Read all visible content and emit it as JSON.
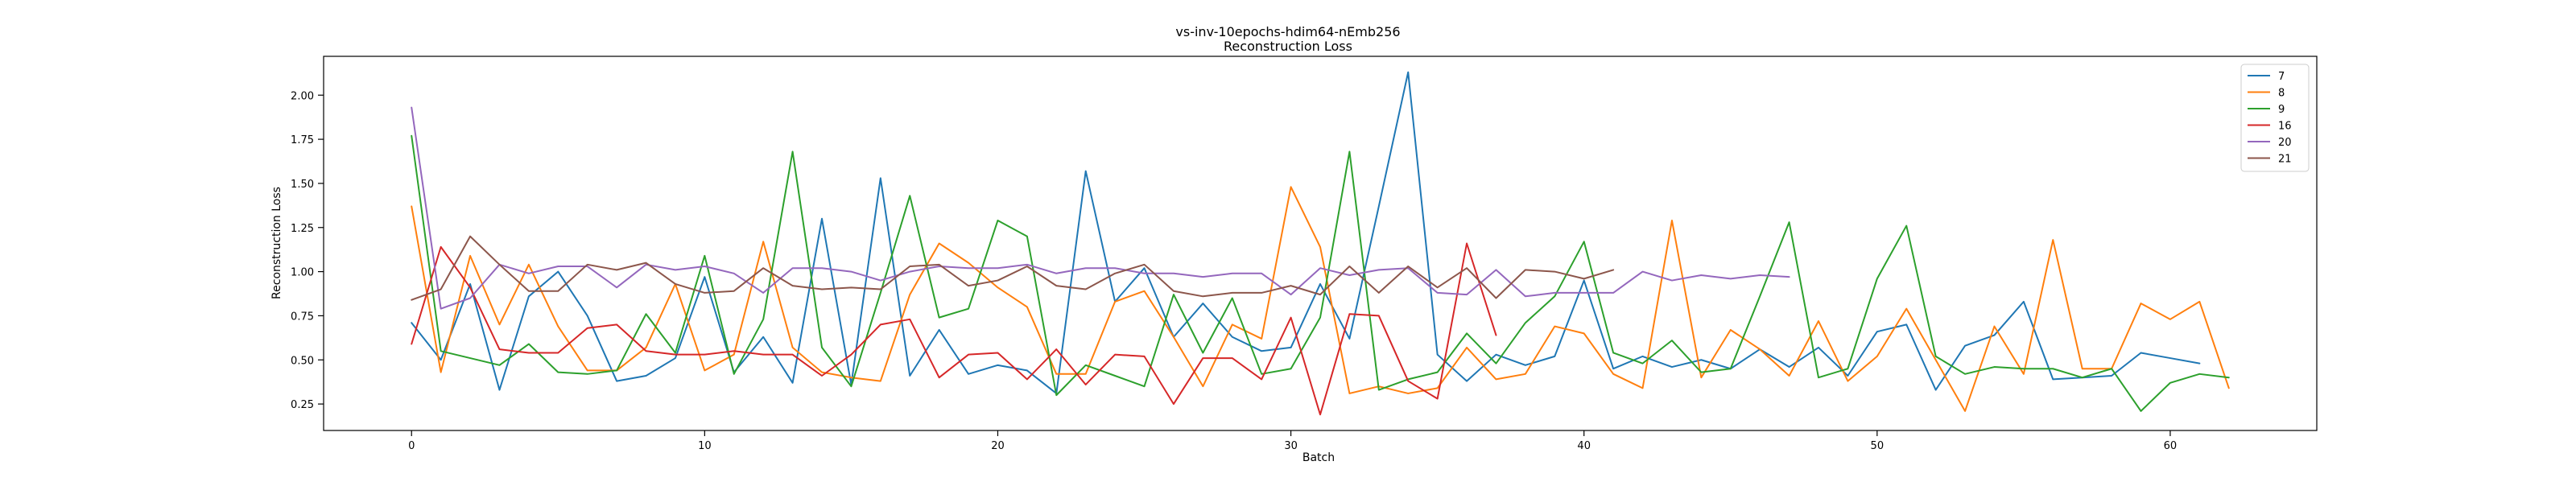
{
  "chart_data": {
    "type": "line",
    "title": "vs-inv-10epochs-hdim64-nEmb256",
    "subtitle": "Reconstruction Loss",
    "xlabel": "Batch",
    "ylabel": "Reconstruction Loss",
    "xlim": [
      -3,
      65
    ],
    "ylim": [
      0.1,
      2.22
    ],
    "xticks": [
      0,
      10,
      20,
      30,
      40,
      50,
      60
    ],
    "yticks": [
      "0.25",
      "0.50",
      "0.75",
      "1.00",
      "1.25",
      "1.50",
      "1.75",
      "2.00"
    ],
    "grid": false,
    "legend_position": "top-right",
    "series": [
      {
        "name": "7",
        "color": "#1f77b4",
        "values": [
          0.71,
          0.5,
          0.93,
          0.33,
          0.86,
          1.0,
          0.75,
          0.38,
          0.41,
          0.51,
          0.97,
          0.43,
          0.63,
          0.37,
          1.3,
          0.36,
          1.53,
          0.41,
          0.67,
          0.42,
          0.47,
          0.44,
          0.31,
          1.57,
          0.83,
          1.02,
          0.63,
          0.82,
          0.63,
          0.55,
          0.57,
          0.93,
          0.62,
          1.37,
          2.13,
          0.53,
          0.38,
          0.53,
          0.47,
          0.52,
          0.95,
          0.45,
          0.52,
          0.46,
          0.5,
          0.45,
          0.56,
          0.46,
          0.57,
          0.41,
          0.66,
          0.7,
          0.33,
          0.58,
          0.64,
          0.83,
          0.39,
          0.4,
          0.41,
          0.54,
          0.51,
          0.48
        ]
      },
      {
        "name": "8",
        "color": "#ff7f0e",
        "values": [
          1.37,
          0.43,
          1.09,
          0.7,
          1.04,
          0.69,
          0.44,
          0.44,
          0.57,
          0.93,
          0.44,
          0.53,
          1.17,
          0.57,
          0.43,
          0.4,
          0.38,
          0.87,
          1.16,
          1.05,
          0.91,
          0.8,
          0.42,
          0.42,
          0.83,
          0.89,
          0.63,
          0.35,
          0.7,
          0.62,
          1.48,
          1.14,
          0.31,
          0.35,
          0.31,
          0.34,
          0.57,
          0.39,
          0.42,
          0.69,
          0.65,
          0.42,
          0.34,
          1.29,
          0.4,
          0.67,
          0.56,
          0.41,
          0.72,
          0.38,
          0.52,
          0.79,
          0.5,
          0.21,
          0.69,
          0.42,
          1.18,
          0.45,
          0.45,
          0.82,
          0.73,
          0.83,
          0.34
        ]
      },
      {
        "name": "9",
        "color": "#2ca02c",
        "values": [
          1.77,
          0.55,
          0.51,
          0.47,
          0.59,
          0.43,
          0.42,
          0.44,
          0.76,
          0.54,
          1.09,
          0.42,
          0.73,
          1.68,
          0.57,
          0.35,
          0.88,
          1.43,
          0.74,
          0.79,
          1.29,
          1.2,
          0.3,
          0.47,
          0.41,
          0.35,
          0.87,
          0.54,
          0.85,
          0.42,
          0.45,
          0.74,
          1.68,
          0.33,
          0.39,
          0.43,
          0.65,
          0.48,
          0.71,
          0.86,
          1.17,
          0.54,
          0.48,
          0.61,
          0.43,
          0.45,
          0.86,
          1.28,
          0.4,
          0.45,
          0.96,
          1.26,
          0.52,
          0.42,
          0.46,
          0.45,
          0.45,
          0.4,
          0.45,
          0.21,
          0.37,
          0.42,
          0.4
        ]
      },
      {
        "name": "16",
        "color": "#d62728",
        "values": [
          0.59,
          1.14,
          0.91,
          0.56,
          0.54,
          0.54,
          0.68,
          0.7,
          0.55,
          0.53,
          0.53,
          0.55,
          0.53,
          0.53,
          0.41,
          0.53,
          0.7,
          0.73,
          0.4,
          0.53,
          0.54,
          0.39,
          0.56,
          0.36,
          0.53,
          0.52,
          0.25,
          0.51,
          0.51,
          0.39,
          0.74,
          0.19,
          0.76,
          0.75,
          0.38,
          0.28,
          1.16,
          0.64
        ]
      },
      {
        "name": "20",
        "color": "#9467bd",
        "values": [
          1.93,
          0.79,
          0.85,
          1.04,
          0.99,
          1.03,
          1.03,
          0.91,
          1.04,
          1.01,
          1.03,
          0.99,
          0.88,
          1.02,
          1.02,
          1.0,
          0.95,
          1.0,
          1.03,
          1.02,
          1.02,
          1.04,
          0.99,
          1.02,
          1.02,
          0.99,
          0.99,
          0.97,
          0.99,
          0.99,
          0.87,
          1.02,
          0.98,
          1.01,
          1.02,
          0.88,
          0.87,
          1.01,
          0.86,
          0.88,
          0.88,
          0.88,
          1.0,
          0.95,
          0.98,
          0.96,
          0.98,
          0.97
        ]
      },
      {
        "name": "21",
        "color": "#8c564b",
        "values": [
          0.84,
          0.9,
          1.2,
          1.04,
          0.89,
          0.89,
          1.04,
          1.01,
          1.05,
          0.93,
          0.88,
          0.89,
          1.02,
          0.92,
          0.9,
          0.91,
          0.9,
          1.03,
          1.04,
          0.92,
          0.95,
          1.03,
          0.92,
          0.9,
          0.99,
          1.04,
          0.89,
          0.86,
          0.88,
          0.88,
          0.92,
          0.87,
          1.03,
          0.88,
          1.03,
          0.91,
          1.02,
          0.85,
          1.01,
          1.0,
          0.96,
          1.01
        ]
      }
    ]
  }
}
